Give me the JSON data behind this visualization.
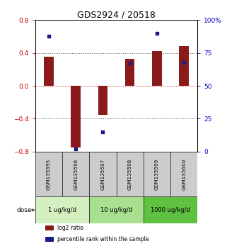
{
  "title": "GDS2924 / 20518",
  "samples": [
    "GSM135595",
    "GSM135596",
    "GSM135597",
    "GSM135598",
    "GSM135599",
    "GSM135600"
  ],
  "log2_ratio": [
    0.35,
    -0.75,
    -0.35,
    0.33,
    0.42,
    0.48
  ],
  "percentile": [
    88,
    2,
    15,
    67,
    90,
    68
  ],
  "ylim_left": [
    -0.8,
    0.8
  ],
  "ylim_right": [
    0,
    100
  ],
  "yticks_left": [
    -0.8,
    -0.4,
    0.0,
    0.4,
    0.8
  ],
  "yticks_right": [
    0,
    25,
    50,
    75,
    100
  ],
  "ytick_labels_right": [
    "0",
    "25",
    "50",
    "75",
    "100%"
  ],
  "hlines": [
    -0.4,
    0.0,
    0.4
  ],
  "bar_color": "#8B1A1A",
  "dot_color": "#1a1a8b",
  "bar_width": 0.35,
  "group_positions": [
    [
      0,
      2,
      "#d4f0c0",
      "1 ug/kg/d"
    ],
    [
      2,
      4,
      "#a8e090",
      "10 ug/kg/d"
    ],
    [
      4,
      6,
      "#60c040",
      "1000 ug/kg/d"
    ]
  ],
  "legend_items": [
    {
      "label": "log2 ratio",
      "color": "#8B1A1A"
    },
    {
      "label": "percentile rank within the sample",
      "color": "#1a1a8b"
    }
  ],
  "dose_label": "dose",
  "bg": "#ffffff",
  "sample_box_color": "#cccccc",
  "left_tick_color": "#cc0000",
  "right_tick_color": "#0000cc",
  "title_fontsize": 9
}
